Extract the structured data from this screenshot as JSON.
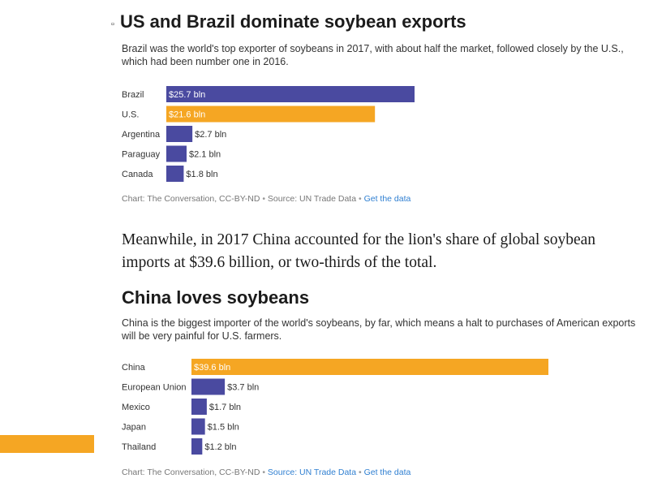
{
  "block1": {
    "title": "US and Brazil dominate soybean exports",
    "subtitle": "Brazil was the world's top exporter of soybeans in 2017, with about half the market, followed closely by the U.S., which had been number one in 2016.",
    "source_prefix": "Chart: The Conversation, CC-BY-ND",
    "source_data": "Source: UN Trade Data",
    "source_link": "Get the data"
  },
  "paragraph": "Meanwhile, in 2017 China accounted for the lion's share of global soybean imports at $39.6 billion, or two-thirds of the total.",
  "block2": {
    "title": "China loves soybeans",
    "subtitle": "China is the biggest importer of the world's soybeans, by far, which means a halt to purchases of American exports will be very painful for U.S. farmers.",
    "source_prefix": "Chart: The Conversation, CC-BY-ND",
    "source_data": "Source: UN Trade Data",
    "source_link": "Get the data"
  },
  "colors": {
    "default_bar": "#4a4aa0",
    "highlight_bar": "#f5a623",
    "link": "#2f7fd1"
  },
  "chart_data": [
    {
      "type": "bar",
      "orientation": "horizontal",
      "title": "US and Brazil dominate soybean exports",
      "categories": [
        "Brazil",
        "U.S.",
        "Argentina",
        "Paraguay",
        "Canada"
      ],
      "values": [
        25.7,
        21.6,
        2.7,
        2.1,
        1.8
      ],
      "value_labels": [
        "$25.7 bln",
        "$21.6 bln",
        "$2.7 bln",
        "$2.1 bln",
        "$1.8 bln"
      ],
      "highlight": [
        false,
        true,
        false,
        false,
        false
      ],
      "unit": "$ billion"
    },
    {
      "type": "bar",
      "orientation": "horizontal",
      "title": "China loves soybeans",
      "categories": [
        "China",
        "European Union",
        "Mexico",
        "Japan",
        "Thailand"
      ],
      "values": [
        39.6,
        3.7,
        1.7,
        1.5,
        1.2
      ],
      "value_labels": [
        "$39.6 bln",
        "$3.7 bln",
        "$1.7 bln",
        "$1.5 bln",
        "$1.2 bln"
      ],
      "highlight": [
        true,
        false,
        false,
        false,
        false
      ],
      "unit": "$ billion"
    }
  ]
}
